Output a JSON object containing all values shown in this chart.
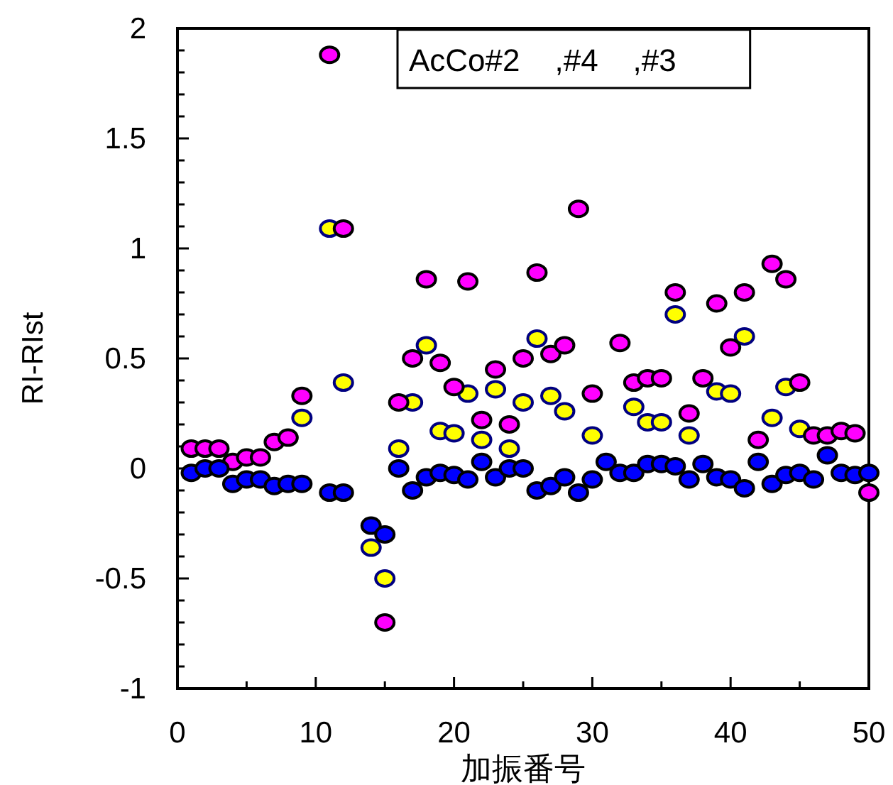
{
  "chart_data": {
    "type": "scatter",
    "xlabel": "加振番号",
    "ylabel": "RI-RIst",
    "annotations": [
      "AcCo#2    ,#4    ,#3"
    ],
    "x": [
      1,
      2,
      3,
      4,
      5,
      6,
      7,
      8,
      9,
      11,
      12,
      14,
      15,
      16,
      17,
      18,
      19,
      20,
      21,
      22,
      23,
      24,
      25,
      26,
      27,
      28,
      29,
      30,
      31,
      32,
      33,
      34,
      35,
      36,
      37,
      38,
      39,
      40,
      41,
      42,
      43,
      44,
      45,
      46,
      47,
      48,
      49,
      50
    ],
    "series": [
      {
        "color": "#ffff00",
        "values": [
          null,
          null,
          null,
          null,
          null,
          null,
          null,
          null,
          0.23,
          1.09,
          0.39,
          -0.36,
          -0.5,
          0.09,
          0.3,
          0.56,
          0.17,
          0.16,
          0.34,
          0.13,
          0.36,
          0.09,
          0.3,
          0.59,
          0.33,
          0.26,
          null,
          0.15,
          null,
          null,
          0.28,
          0.21,
          0.21,
          0.7,
          0.15,
          null,
          0.35,
          0.34,
          0.6,
          null,
          0.23,
          0.37,
          0.18,
          null,
          null,
          null,
          null,
          null
        ]
      },
      {
        "color": "#ff00ff",
        "values": [
          0.09,
          0.09,
          0.09,
          0.03,
          0.05,
          0.05,
          0.12,
          0.14,
          0.33,
          1.88,
          1.09,
          null,
          -0.7,
          0.3,
          0.5,
          0.86,
          0.48,
          0.37,
          0.85,
          0.22,
          0.45,
          0.2,
          0.5,
          0.89,
          0.52,
          0.56,
          1.18,
          0.34,
          null,
          0.57,
          0.39,
          0.41,
          0.41,
          0.8,
          0.25,
          0.41,
          0.75,
          0.55,
          0.8,
          0.13,
          0.93,
          0.86,
          0.39,
          0.15,
          0.15,
          0.17,
          0.16,
          -0.11
        ]
      },
      {
        "color": "#0000ff",
        "values": [
          -0.02,
          0,
          0,
          -0.07,
          -0.05,
          -0.05,
          -0.08,
          -0.07,
          -0.07,
          -0.11,
          -0.11,
          -0.26,
          -0.3,
          0,
          -0.1,
          -0.04,
          -0.02,
          -0.03,
          -0.05,
          0.03,
          -0.04,
          0,
          0,
          -0.1,
          -0.08,
          -0.04,
          -0.11,
          -0.05,
          0.03,
          -0.02,
          -0.02,
          0.02,
          0.02,
          0.01,
          -0.05,
          0.02,
          -0.04,
          -0.05,
          -0.09,
          0.03,
          -0.07,
          -0.03,
          -0.02,
          -0.05,
          0.06,
          -0.02,
          -0.03,
          -0.02
        ]
      }
    ],
    "xlim": [
      0,
      50
    ],
    "xticks": [
      0,
      {
        "value": 5,
        "label": null
      },
      10,
      {
        "value": 15,
        "label": null
      },
      20,
      {
        "value": 25,
        "label": null
      },
      30,
      {
        "value": 35,
        "label": null
      },
      40,
      {
        "value": 45,
        "label": null
      },
      50
    ],
    "ylim": [
      -1,
      2
    ],
    "yticks": [
      {
        "value": -1,
        "label": "-1"
      },
      {
        "value": -0.9,
        "label": null
      },
      {
        "value": -0.8,
        "label": null
      },
      {
        "value": -0.7,
        "label": null
      },
      {
        "value": -0.6,
        "label": null
      },
      {
        "value": -0.5,
        "label": "-0.5"
      },
      {
        "value": -0.4,
        "label": null
      },
      {
        "value": -0.3,
        "label": null
      },
      {
        "value": -0.2,
        "label": null
      },
      {
        "value": -0.1,
        "label": null
      },
      0,
      {
        "value": 0.1,
        "label": null
      },
      {
        "value": 0.2,
        "label": null
      },
      {
        "value": 0.3,
        "label": null
      },
      {
        "value": 0.4,
        "label": null
      },
      0.5,
      {
        "value": 0.6,
        "label": null
      },
      {
        "value": 0.7,
        "label": null
      },
      {
        "value": 0.8,
        "label": null
      },
      {
        "value": 0.9,
        "label": null
      },
      1,
      {
        "value": 1.1,
        "label": null
      },
      {
        "value": 1.2,
        "label": null
      },
      {
        "value": 1.3,
        "label": null
      },
      {
        "value": 1.4,
        "label": null
      },
      1.5,
      {
        "value": 1.6,
        "label": null
      },
      {
        "value": 1.7,
        "label": null
      },
      {
        "value": 1.8,
        "label": null
      },
      {
        "value": 1.9,
        "label": null
      },
      2
    ],
    "marker": "circle",
    "grid": false
  }
}
